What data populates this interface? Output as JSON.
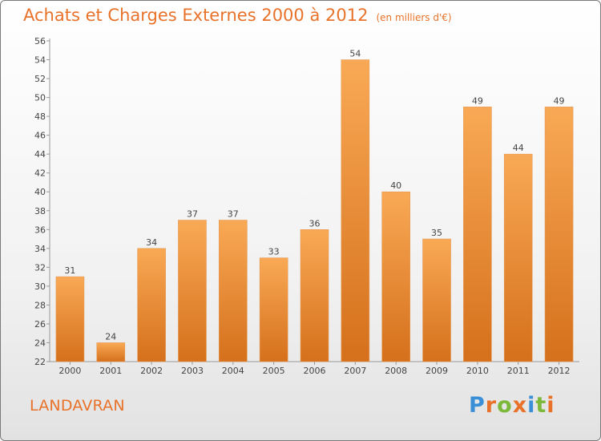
{
  "header": {
    "title": "Achats et Charges Externes 2000 à 2012",
    "unit": "(en milliers d'€)"
  },
  "footer": {
    "commune": "LANDAVRAN",
    "logo": "Proxiti"
  },
  "colors": {
    "accent": "#e8722a",
    "bar_light": "#f9a955",
    "bar_dark": "#d5701c",
    "axis": "#999999",
    "grid": "#bbbbbb",
    "text": "#444444"
  },
  "chart_data": {
    "type": "bar",
    "title": "Achats et Charges Externes 2000 à 2012",
    "subtitle": "(en milliers d'€)",
    "categories": [
      "2000",
      "2001",
      "2002",
      "2003",
      "2004",
      "2005",
      "2006",
      "2007",
      "2008",
      "2009",
      "2010",
      "2011",
      "2012"
    ],
    "values": [
      31,
      24,
      34,
      37,
      37,
      33,
      36,
      54,
      40,
      35,
      49,
      44,
      49
    ],
    "ylim": [
      22,
      56
    ],
    "yticks": [
      22,
      24,
      26,
      28,
      30,
      32,
      34,
      36,
      38,
      40,
      42,
      44,
      46,
      48,
      50,
      52,
      54,
      56
    ],
    "xlabel": "",
    "ylabel": "",
    "grid": false,
    "data_labels": true
  }
}
